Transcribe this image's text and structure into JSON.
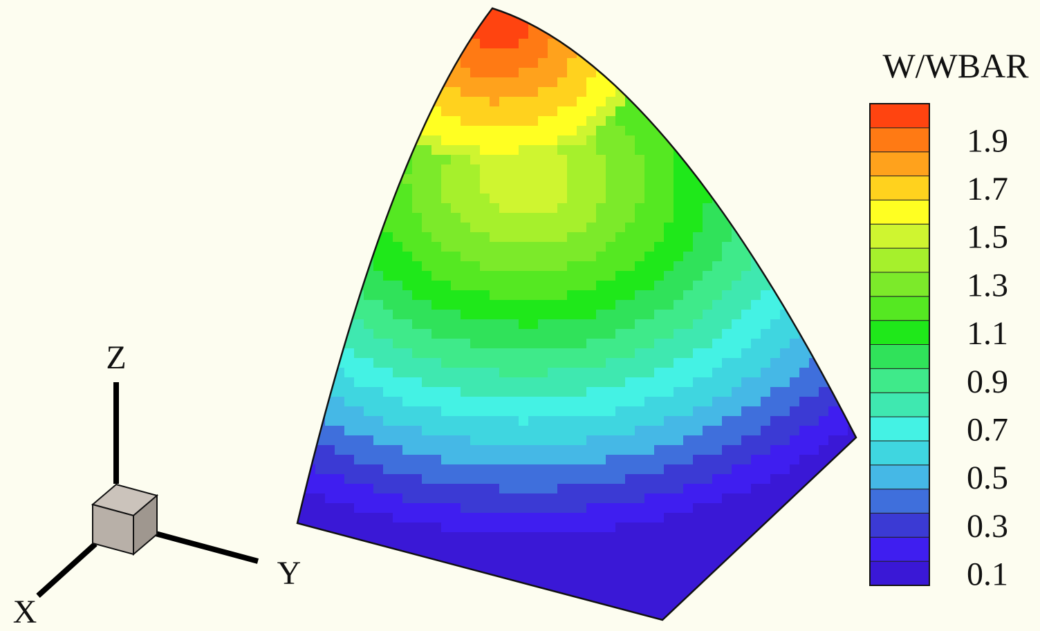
{
  "chart_data": {
    "type": "heatmap",
    "title": "",
    "colorbar": {
      "title": "W/WBAR",
      "tick_labels": [
        "1.9",
        "1.7",
        "1.5",
        "1.3",
        "1.1",
        "0.9",
        "0.7",
        "0.5",
        "0.3",
        "0.1"
      ],
      "range": [
        0.05,
        2.05
      ],
      "levels": [
        {
          "value": 0.05,
          "color": "#3a18d6"
        },
        {
          "value": 0.15,
          "color": "#3f1ef0"
        },
        {
          "value": 0.25,
          "color": "#3b3ad4"
        },
        {
          "value": 0.35,
          "color": "#3f6fdc"
        },
        {
          "value": 0.45,
          "color": "#45b8e6"
        },
        {
          "value": 0.55,
          "color": "#3fd6e0"
        },
        {
          "value": 0.65,
          "color": "#44f2e4"
        },
        {
          "value": 0.75,
          "color": "#3fe8b0"
        },
        {
          "value": 0.85,
          "color": "#3fea8a"
        },
        {
          "value": 0.95,
          "color": "#30e25a"
        },
        {
          "value": 1.05,
          "color": "#1fe81a"
        },
        {
          "value": 1.15,
          "color": "#55e822"
        },
        {
          "value": 1.25,
          "color": "#7cea2a"
        },
        {
          "value": 1.35,
          "color": "#a6f02c"
        },
        {
          "value": 1.45,
          "color": "#cff530"
        },
        {
          "value": 1.55,
          "color": "#ffff22"
        },
        {
          "value": 1.65,
          "color": "#ffd21e"
        },
        {
          "value": 1.75,
          "color": "#ffa21c"
        },
        {
          "value": 1.85,
          "color": "#ff7a14"
        },
        {
          "value": 1.95,
          "color": "#ff4410"
        },
        {
          "value": 2.05,
          "color": "#ff1010"
        }
      ]
    },
    "field_description": "contour surface on a curved triangular domain; low values (0.1) along bottom edge, peak near upper apex (~2.0)"
  },
  "axes_triad": {
    "z_label": "Z",
    "y_label": "Y",
    "x_label": "X"
  },
  "colors": {
    "background": "#fdfdf0",
    "outline": "#111111",
    "cube_face": "#b8b0a8",
    "cube_top": "#c8c0b8",
    "cube_side": "#a69e96"
  }
}
